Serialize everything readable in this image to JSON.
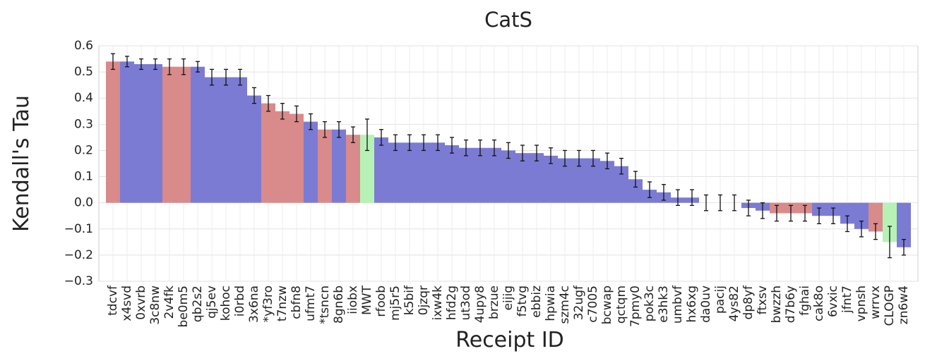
{
  "chart_data": {
    "type": "bar",
    "title": "CatS",
    "x_label": "Receipt ID",
    "y_label": "Kendall's Tau",
    "categories": [
      "tdcvf",
      "x4svd",
      "0xvrb",
      "3c8nw",
      "2v4fk",
      "be0m5",
      "qb2s2",
      "qj5ev",
      "kohoc",
      "i0rbd",
      "3x6na",
      "*yf3ro",
      "t7nzw",
      "cbfn8",
      "ufmt7",
      "*tsncn",
      "8gn6b",
      "iiobx",
      "MWT",
      "rfoob",
      "mj5r5",
      "k5bif",
      "0jzqr",
      "ixw4k",
      "hfd2g",
      "ut3od",
      "4upy8",
      "brzue",
      "eijig",
      "f5tvg",
      "ebbiz",
      "hpwia",
      "szm4c",
      "32ugf",
      "c7005",
      "bcwap",
      "qctqm",
      "7pmy0",
      "pok3c",
      "e3hk3",
      "umbvf",
      "hx6xg",
      "da0uv",
      "pacij",
      "4ys82",
      "dp8yf",
      "ftxsv",
      "bwzzh",
      "d7b6y",
      "fghai",
      "cak8o",
      "6vxic",
      "jfnt7",
      "vpnsh",
      "wrrvx",
      "CLOGP",
      "zn6w4"
    ],
    "values": [
      0.54,
      0.54,
      0.53,
      0.53,
      0.52,
      0.52,
      0.52,
      0.48,
      0.48,
      0.48,
      0.41,
      0.38,
      0.35,
      0.34,
      0.31,
      0.28,
      0.28,
      0.26,
      0.26,
      0.25,
      0.23,
      0.23,
      0.23,
      0.23,
      0.22,
      0.21,
      0.21,
      0.21,
      0.2,
      0.19,
      0.19,
      0.18,
      0.17,
      0.17,
      0.17,
      0.16,
      0.14,
      0.09,
      0.05,
      0.04,
      0.02,
      0.02,
      0,
      0,
      0,
      -0.02,
      -0.03,
      -0.04,
      -0.04,
      -0.04,
      -0.05,
      -0.05,
      -0.08,
      -0.1,
      -0.11,
      -0.15,
      -0.17
    ],
    "errors": [
      0.03,
      0.02,
      0.02,
      0.02,
      0.03,
      0.03,
      0.02,
      0.03,
      0.03,
      0.03,
      0.03,
      0.03,
      0.03,
      0.03,
      0.03,
      0.03,
      0.03,
      0.03,
      0.06,
      0.03,
      0.03,
      0.03,
      0.03,
      0.03,
      0.03,
      0.03,
      0.03,
      0.03,
      0.03,
      0.03,
      0.03,
      0.03,
      0.03,
      0.03,
      0.03,
      0.03,
      0.03,
      0.03,
      0.03,
      0.03,
      0.03,
      0.03,
      0.03,
      0.03,
      0.03,
      0.03,
      0.03,
      0.03,
      0.03,
      0.03,
      0.03,
      0.03,
      0.03,
      0.03,
      0.03,
      0.06,
      0.03
    ],
    "colors": [
      "#d98a8a",
      "#7b7bd4",
      "#7b7bd4",
      "#7b7bd4",
      "#d98a8a",
      "#d98a8a",
      "#7b7bd4",
      "#7b7bd4",
      "#7b7bd4",
      "#7b7bd4",
      "#7b7bd4",
      "#d98a8a",
      "#d98a8a",
      "#d98a8a",
      "#7b7bd4",
      "#d98a8a",
      "#7b7bd4",
      "#d98a8a",
      "#b6f2b6",
      "#7b7bd4",
      "#7b7bd4",
      "#7b7bd4",
      "#7b7bd4",
      "#7b7bd4",
      "#7b7bd4",
      "#7b7bd4",
      "#7b7bd4",
      "#7b7bd4",
      "#7b7bd4",
      "#7b7bd4",
      "#7b7bd4",
      "#7b7bd4",
      "#7b7bd4",
      "#7b7bd4",
      "#7b7bd4",
      "#7b7bd4",
      "#7b7bd4",
      "#7b7bd4",
      "#7b7bd4",
      "#7b7bd4",
      "#7b7bd4",
      "#7b7bd4",
      "#7b7bd4",
      "#7b7bd4",
      "#7b7bd4",
      "#7b7bd4",
      "#7b7bd4",
      "#d98a8a",
      "#d98a8a",
      "#d98a8a",
      "#7b7bd4",
      "#7b7bd4",
      "#7b7bd4",
      "#7b7bd4",
      "#d98a8a",
      "#b6f2b6",
      "#7b7bd4"
    ],
    "ylim": [
      -0.3,
      0.6
    ],
    "yticks": [
      {
        "value": -0.3,
        "label": "−0.3"
      },
      {
        "value": -0.2,
        "label": "−0.2"
      },
      {
        "value": -0.1,
        "label": "−0.1"
      },
      {
        "value": 0,
        "label": "0.0"
      },
      0.1,
      0.2,
      0.3,
      0.4,
      0.5,
      0.6
    ],
    "grid": true
  }
}
